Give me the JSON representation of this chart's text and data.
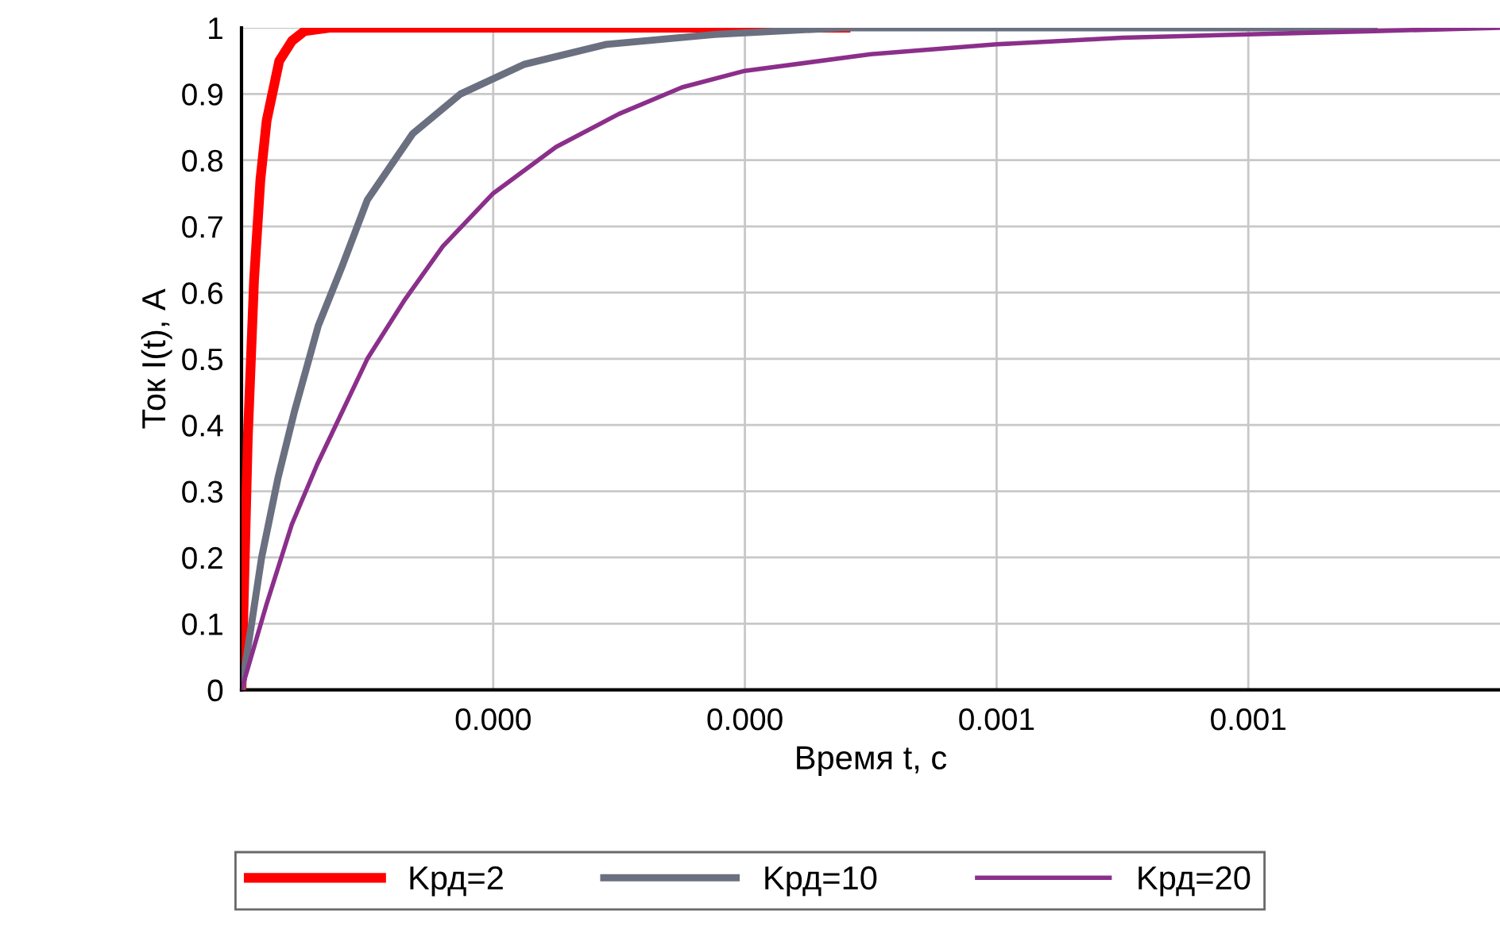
{
  "chart_data": {
    "type": "line",
    "xlabel": "Время t, с",
    "ylabel": "Ток I(t), А",
    "xlim": [
      0,
      0.001
    ],
    "ylim": [
      0,
      1
    ],
    "xticks": [
      {
        "value": 0.0002,
        "label": "0.000"
      },
      {
        "value": 0.0004,
        "label": "0.000"
      },
      {
        "value": 0.0006,
        "label": "0.001"
      },
      {
        "value": 0.0008,
        "label": "0.001"
      }
    ],
    "yticks": [
      0,
      0.1,
      0.2,
      0.3,
      0.4,
      0.5,
      0.6,
      0.7,
      0.8,
      0.9,
      1
    ],
    "grid": true,
    "legend": "bottom",
    "marker": "none",
    "line_style": "solid",
    "series": [
      {
        "name": "Kрд=2",
        "color": "#ff0000",
        "x": [
          0,
          5e-06,
          1e-05,
          1.5e-05,
          2e-05,
          3e-05,
          4e-05,
          5e-05,
          7e-05,
          0.00048
        ],
        "values": [
          0,
          0.38,
          0.62,
          0.77,
          0.86,
          0.95,
          0.98,
          0.995,
          1.0,
          1.0
        ]
      },
      {
        "name": "Kрд=10",
        "color": "#6b7080",
        "x": [
          0,
          1.6e-05,
          2.9e-05,
          4.2e-05,
          6.1e-05,
          8e-05,
          0.0001,
          0.000136,
          0.000174,
          0.000225,
          0.00029,
          0.000376,
          0.000477,
          0.0009
        ],
        "values": [
          0,
          0.2,
          0.32,
          0.42,
          0.55,
          0.64,
          0.74,
          0.84,
          0.9,
          0.945,
          0.975,
          0.99,
          1.0,
          1.0
        ]
      },
      {
        "name": "Kрд=20",
        "color": "#8b2f8b",
        "x": [
          0,
          2e-05,
          4e-05,
          6e-05,
          8e-05,
          0.0001,
          0.00013,
          0.00016,
          0.0002,
          0.00025,
          0.0003,
          0.00035,
          0.0004,
          0.0005,
          0.0006,
          0.0007,
          0.0008,
          0.0009,
          0.001
        ],
        "values": [
          0,
          0.13,
          0.25,
          0.34,
          0.42,
          0.5,
          0.59,
          0.67,
          0.75,
          0.82,
          0.87,
          0.91,
          0.935,
          0.96,
          0.975,
          0.985,
          0.99,
          0.995,
          1.0
        ]
      }
    ]
  }
}
